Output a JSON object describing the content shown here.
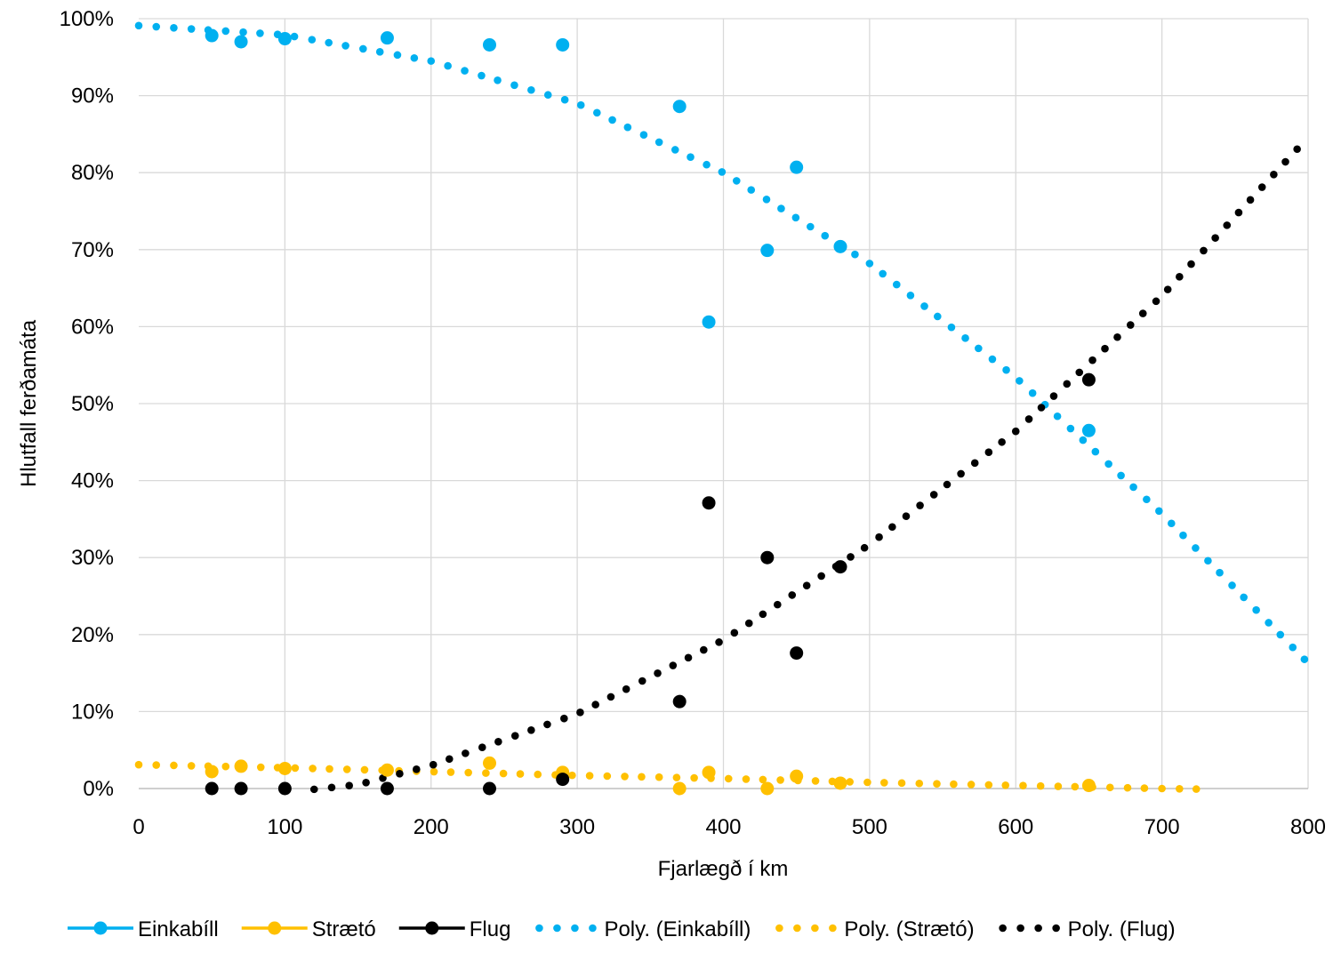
{
  "chart_data": {
    "type": "scatter",
    "xlabel": "Fjarlægð í km",
    "ylabel": "Hlutfall ferðamáta",
    "xlim": [
      0,
      800
    ],
    "ylim": [
      0,
      1
    ],
    "x_ticks": [
      0,
      100,
      200,
      300,
      400,
      500,
      600,
      700,
      800
    ],
    "x_tick_labels": [
      "0",
      "100",
      "200",
      "300",
      "400",
      "500",
      "600",
      "700",
      "800"
    ],
    "y_ticks": [
      0,
      0.1,
      0.2,
      0.3,
      0.4,
      0.5,
      0.6,
      0.7,
      0.8,
      0.9,
      1.0
    ],
    "y_tick_labels": [
      "0%",
      "10%",
      "20%",
      "30%",
      "40%",
      "50%",
      "60%",
      "70%",
      "80%",
      "90%",
      "100%"
    ],
    "grid": true,
    "legend_position": "bottom",
    "series": [
      {
        "name": "Einkabíll",
        "color": "#00B0F0",
        "points": [
          [
            50,
            0.978
          ],
          [
            70,
            0.97
          ],
          [
            100,
            0.974
          ],
          [
            170,
            0.975
          ],
          [
            240,
            0.966
          ],
          [
            290,
            0.966
          ],
          [
            370,
            0.886
          ],
          [
            390,
            0.606
          ],
          [
            430,
            0.699
          ],
          [
            450,
            0.807
          ],
          [
            480,
            0.704
          ],
          [
            650,
            0.465
          ]
        ]
      },
      {
        "name": "Strætó",
        "color": "#FFC000",
        "points": [
          [
            50,
            0.022
          ],
          [
            70,
            0.029
          ],
          [
            100,
            0.026
          ],
          [
            170,
            0.024
          ],
          [
            240,
            0.033
          ],
          [
            290,
            0.021
          ],
          [
            370,
            0.0
          ],
          [
            390,
            0.021
          ],
          [
            430,
            0.0
          ],
          [
            450,
            0.016
          ],
          [
            480,
            0.007
          ],
          [
            650,
            0.004
          ]
        ]
      },
      {
        "name": "Flug",
        "color": "#000000",
        "points": [
          [
            50,
            0.0
          ],
          [
            70,
            0.0
          ],
          [
            100,
            0.0
          ],
          [
            170,
            0.0
          ],
          [
            240,
            0.0
          ],
          [
            290,
            0.012
          ],
          [
            370,
            0.113
          ],
          [
            390,
            0.371
          ],
          [
            430,
            0.3
          ],
          [
            450,
            0.176
          ],
          [
            480,
            0.288
          ],
          [
            650,
            0.531
          ]
        ]
      }
    ],
    "trendlines": [
      {
        "name": "Poly. (Einkabíll)",
        "color": "#00B0F0",
        "x_range": [
          0,
          800
        ],
        "points": [
          [
            0,
            0.991
          ],
          [
            100,
            0.979
          ],
          [
            200,
            0.945
          ],
          [
            300,
            0.89
          ],
          [
            400,
            0.8
          ],
          [
            500,
            0.682
          ],
          [
            600,
            0.534
          ],
          [
            700,
            0.357
          ],
          [
            800,
            0.163
          ]
        ]
      },
      {
        "name": "Poly. (Strætó)",
        "color": "#FFC000",
        "x_range": [
          0,
          800
        ],
        "points": [
          [
            0,
            0.031
          ],
          [
            100,
            0.027
          ],
          [
            200,
            0.022
          ],
          [
            300,
            0.017
          ],
          [
            400,
            0.013
          ],
          [
            500,
            0.008
          ],
          [
            600,
            0.004
          ],
          [
            700,
            0.0
          ],
          [
            800,
            -0.003
          ]
        ]
      },
      {
        "name": "Poly. (Flug)",
        "color": "#000000",
        "x_range": [
          0,
          800
        ],
        "points": [
          [
            100,
            -0.005
          ],
          [
            150,
            0.005
          ],
          [
            200,
            0.03
          ],
          [
            300,
            0.097
          ],
          [
            400,
            0.193
          ],
          [
            500,
            0.317
          ],
          [
            600,
            0.464
          ],
          [
            700,
            0.64
          ],
          [
            800,
            0.846
          ]
        ]
      }
    ],
    "legend": [
      {
        "label": "Einkabíll",
        "style": "marker-line",
        "color": "#00B0F0"
      },
      {
        "label": "Strætó",
        "style": "marker-line",
        "color": "#FFC000"
      },
      {
        "label": "Flug",
        "style": "marker-line",
        "color": "#000000"
      },
      {
        "label": "Poly. (Einkabíll)",
        "style": "dotted",
        "color": "#00B0F0"
      },
      {
        "label": "Poly. (Strætó)",
        "style": "dotted",
        "color": "#FFC000"
      },
      {
        "label": "Poly. (Flug)",
        "style": "dotted",
        "color": "#000000"
      }
    ]
  }
}
